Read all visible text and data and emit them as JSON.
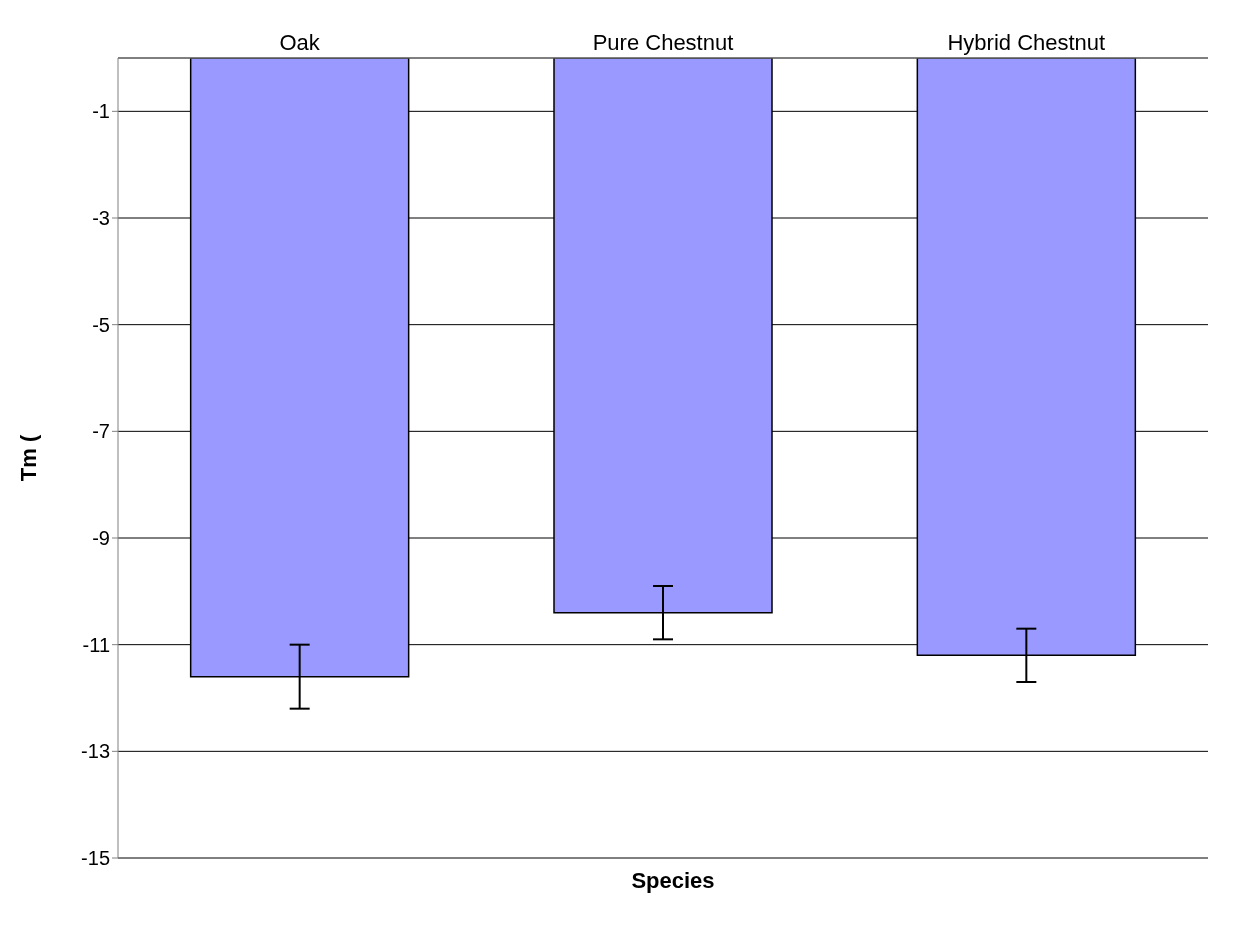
{
  "chart_data": {
    "type": "bar",
    "xlabel": "Species",
    "ylabel": "Tm (",
    "categories": [
      "Oak",
      "Pure Chestnut",
      "Hybrid Chestnut"
    ],
    "values": [
      -11.6,
      -10.4,
      -11.2
    ],
    "errors": [
      0.6,
      0.5,
      0.5
    ],
    "color": "#9999ff",
    "ylim": [
      -15,
      0
    ],
    "yticks": [
      -15,
      -13,
      -11,
      -9,
      -7,
      -5,
      -3,
      -1
    ],
    "grid": "y"
  }
}
